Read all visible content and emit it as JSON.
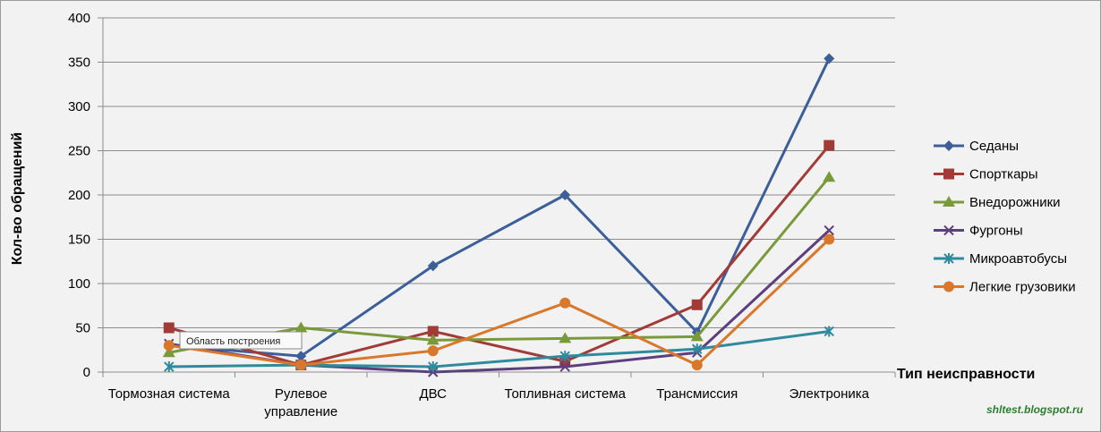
{
  "chart_data": {
    "type": "line",
    "title": "",
    "xlabel": "Тип неисправности",
    "ylabel": "Кол-во обращений",
    "ylim": [
      0,
      400
    ],
    "yticks": [
      0,
      50,
      100,
      150,
      200,
      250,
      300,
      350,
      400
    ],
    "grid": true,
    "legend": "right",
    "categories": [
      [
        "Тормозная система"
      ],
      [
        "Рулевое",
        "управление"
      ],
      [
        "ДВС"
      ],
      [
        "Топливная система"
      ],
      [
        "Трансмиссия"
      ],
      [
        "Электроника"
      ]
    ],
    "series": [
      {
        "name": "Седаны",
        "color": "#3c5f9a",
        "marker": "diamond",
        "values": [
          30,
          18,
          120,
          200,
          45,
          354
        ]
      },
      {
        "name": "Спорткары",
        "color": "#a23b37",
        "marker": "square",
        "values": [
          50,
          8,
          46,
          12,
          76,
          256
        ]
      },
      {
        "name": "Внедорожники",
        "color": "#7a9a3a",
        "marker": "triangle",
        "values": [
          22,
          50,
          36,
          38,
          40,
          220
        ]
      },
      {
        "name": "Фургоны",
        "color": "#5e3f7e",
        "marker": "x",
        "values": [
          32,
          8,
          0,
          6,
          22,
          160
        ]
      },
      {
        "name": "Микроавтобусы",
        "color": "#2f8a9e",
        "marker": "star",
        "values": [
          6,
          8,
          6,
          18,
          26,
          46
        ]
      },
      {
        "name": "Легкие грузовики",
        "color": "#d9772b",
        "marker": "circle",
        "values": [
          30,
          8,
          24,
          78,
          8,
          150
        ]
      }
    ]
  },
  "tooltip": "Область построения",
  "watermark": "shltest.blogspot.ru"
}
